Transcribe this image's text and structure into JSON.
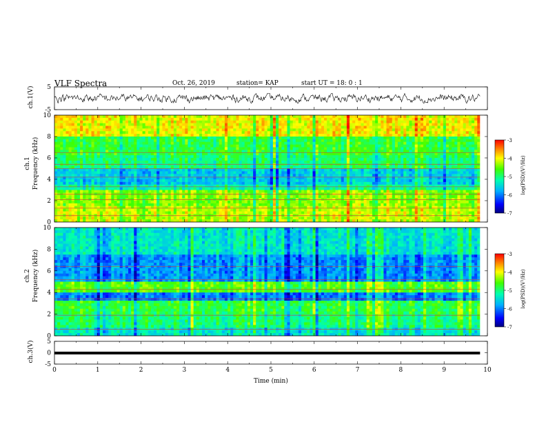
{
  "header": {
    "title": "VLF Spectra",
    "date": "Oct. 26, 2019",
    "station": "station= KAP",
    "start": "start  UT =   18: 0  : 1"
  },
  "panels": {
    "ch1_wave_label": "ch.1(V)",
    "ch1_spec_label": "ch.1",
    "ch1_freq_label": "Frequency (kHz)",
    "ch2_spec_label": "ch.2",
    "ch2_freq_label": "Frequency (kHz)",
    "ch3_wave_label": "ch.3(V)",
    "xlabel": "Time  (min)",
    "colorbar_label": "log(PSD)(V²/Hz)"
  },
  "colors": {
    "low": "#00007f",
    "mid": "#00ff66",
    "high": "#ff0000"
  },
  "chart_data": [
    {
      "type": "line",
      "name": "ch.1(V)",
      "xlabel": "Time  (min)",
      "ylabel": "ch.1(V)",
      "xlim": [
        0,
        10
      ],
      "ylim": [
        -5,
        5
      ],
      "yticks": [
        5,
        -5
      ],
      "x_extent": [
        0,
        9.83
      ],
      "amplitude_range": [
        -2.2,
        2.2
      ]
    },
    {
      "type": "heatmap",
      "name": "ch.1",
      "xlabel": "Time  (min)",
      "ylabel": "Frequency (kHz)",
      "xlim": [
        0,
        10
      ],
      "ylim": [
        0,
        10
      ],
      "yticks": [
        0,
        2,
        4,
        6,
        8,
        10
      ],
      "x_extent": [
        0,
        9.83
      ],
      "colorbar": {
        "label": "log(PSD)(V²/Hz)",
        "range": [
          -7,
          -3
        ],
        "ticks": [
          -3,
          -4,
          -5,
          -6,
          -7
        ]
      },
      "bands_khz": [
        {
          "from": 0,
          "to": 1.6,
          "level": -4.2
        },
        {
          "from": 1.6,
          "to": 3.0,
          "level": -4.4
        },
        {
          "from": 3.0,
          "to": 3.6,
          "level": -5.2
        },
        {
          "from": 3.6,
          "to": 5.0,
          "level": -5.6
        },
        {
          "from": 5.0,
          "to": 6.3,
          "level": -5.0
        },
        {
          "from": 6.3,
          "to": 8.0,
          "level": -4.8
        },
        {
          "from": 8.0,
          "to": 10,
          "level": -4.0
        }
      ],
      "lines_khz": [
        0.6,
        1.3,
        2.1,
        2.6,
        3.3,
        4.2,
        5.0,
        5.4,
        6.5
      ]
    },
    {
      "type": "heatmap",
      "name": "ch.2",
      "xlabel": "Time  (min)",
      "ylabel": "Frequency (kHz)",
      "xlim": [
        0,
        10
      ],
      "ylim": [
        0,
        10
      ],
      "yticks": [
        0,
        2,
        4,
        6,
        8,
        10
      ],
      "x_extent": [
        0,
        9.83
      ],
      "colorbar": {
        "label": "log(PSD)(V²/Hz)",
        "range": [
          -7,
          -3
        ],
        "ticks": [
          -3,
          -4,
          -5,
          -6,
          -7
        ]
      },
      "bands_khz": [
        {
          "from": 0,
          "to": 0.8,
          "level": -5.4
        },
        {
          "from": 0.8,
          "to": 2.0,
          "level": -5.0
        },
        {
          "from": 2.0,
          "to": 3.2,
          "level": -4.8
        },
        {
          "from": 3.2,
          "to": 4.0,
          "level": -6.0
        },
        {
          "from": 4.0,
          "to": 5.0,
          "level": -4.6
        },
        {
          "from": 5.0,
          "to": 7.5,
          "level": -5.9
        },
        {
          "from": 7.5,
          "to": 10,
          "level": -5.4
        }
      ],
      "lines_khz": [
        0.6,
        1.9,
        3.4,
        4.3,
        5.2,
        6.4
      ]
    },
    {
      "type": "line",
      "name": "ch.3(V)",
      "xlabel": "Time  (min)",
      "ylabel": "ch.3(V)",
      "xlim": [
        0,
        10
      ],
      "ylim": [
        -5,
        5
      ],
      "yticks": [
        5,
        0,
        -5
      ],
      "x_extent": [
        0,
        9.83
      ],
      "constant_value": 0
    }
  ]
}
